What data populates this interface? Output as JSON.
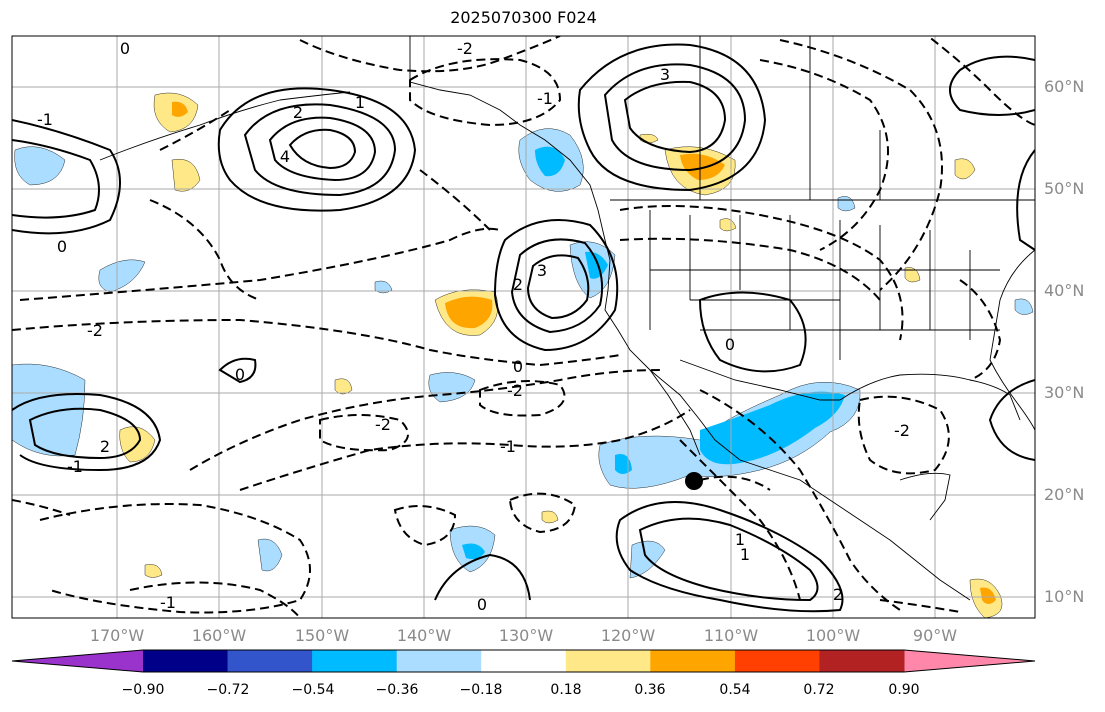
{
  "title": "2025070300 F024",
  "map": {
    "lat_labels": [
      "60°N",
      "50°N",
      "40°N",
      "30°N",
      "20°N",
      "10°N"
    ],
    "lon_labels": [
      "170°W",
      "160°W",
      "150°W",
      "140°W",
      "130°W",
      "120°W",
      "110°W",
      "100°W",
      "90°W"
    ],
    "contour_labels": [
      "-2",
      "0",
      "2",
      "3",
      "4",
      "-1",
      "1",
      "-2",
      "0",
      "-1",
      "2",
      "3",
      "-2",
      "-1",
      "0",
      "-1",
      "-2",
      "0",
      "1",
      "2",
      "-2",
      "0",
      "-1",
      "0",
      "1",
      "2"
    ],
    "marker": "black-dot"
  },
  "colorbar": {
    "tick_labels": [
      "−0.90",
      "−0.72",
      "−0.54",
      "−0.36",
      "−0.18",
      "0.18",
      "0.36",
      "0.54",
      "0.72",
      "0.90"
    ],
    "colors": [
      "#9a33cc",
      "#000088",
      "#3355cc",
      "#00bbff",
      "#aaddff",
      "#ffffff",
      "#ffe888",
      "#ffa500",
      "#ff4000",
      "#b22222",
      "#ff88aa"
    ],
    "extend": "both"
  },
  "colors": {
    "contour": "#000000",
    "coast": "#000000",
    "grid": "#aaaaaa",
    "axis_label": "#8a8a8a"
  }
}
